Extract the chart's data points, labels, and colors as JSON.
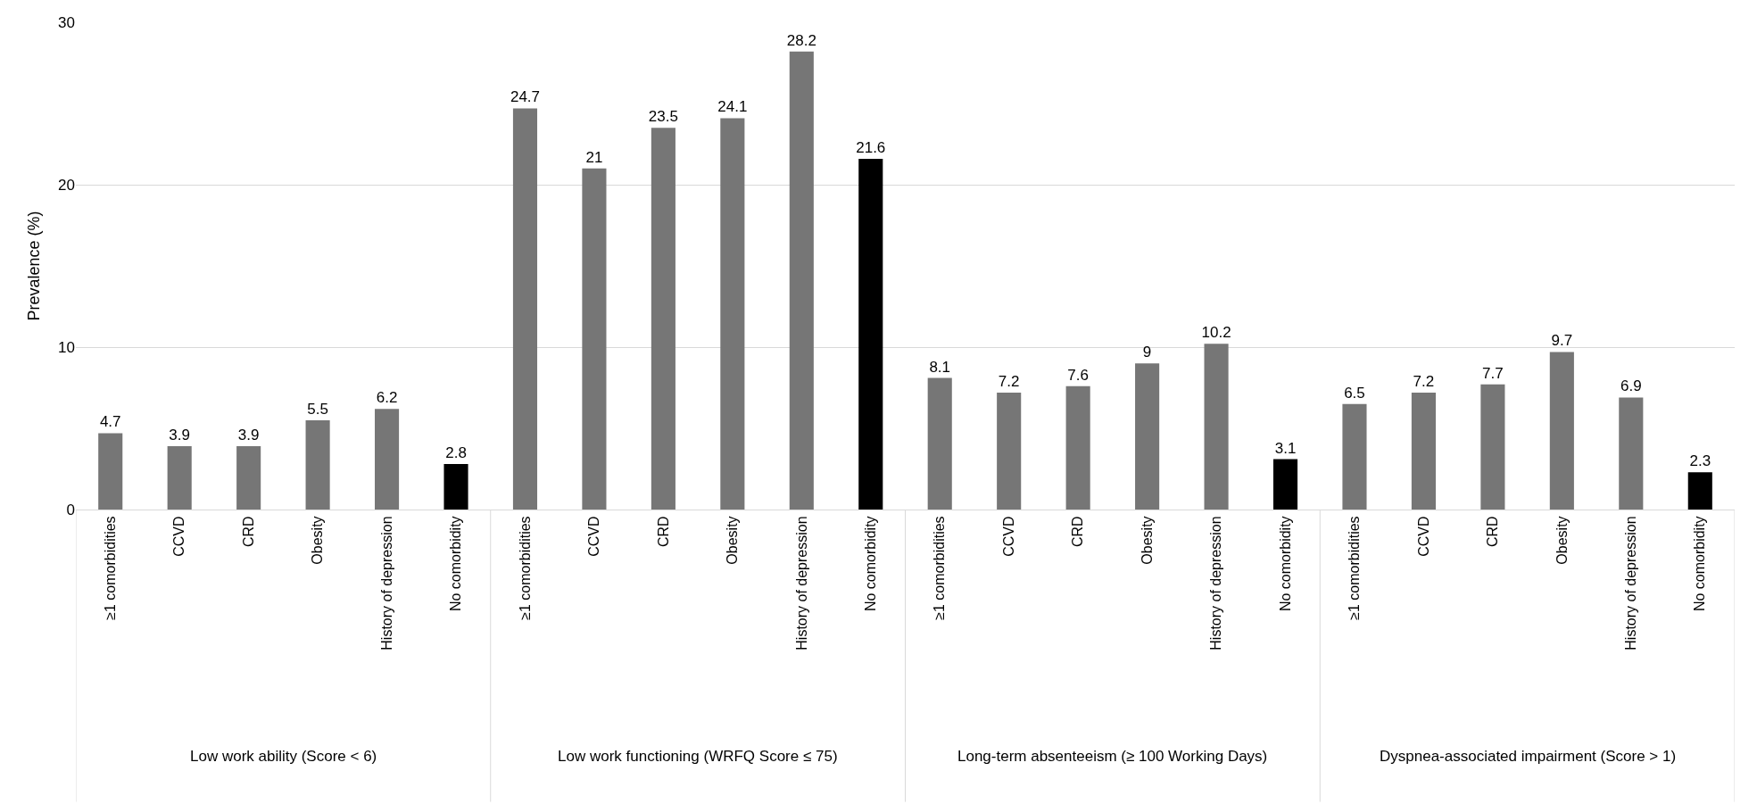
{
  "chart_data": {
    "type": "bar",
    "ylabel": "Prevalence (%)",
    "categories": [
      "≥1 comorbidities",
      "CCVD",
      "CRD",
      "Obesity",
      "History of depression",
      "No comorbidity",
      "≥1 comorbidities",
      "CCVD",
      "CRD",
      "Obesity",
      "History of depression",
      "No comorbidity",
      "≥1 comorbidities",
      "CCVD",
      "CRD",
      "Obesity",
      "History of depression",
      "No comorbidity",
      "≥1 comorbidities",
      "CCVD",
      "CRD",
      "Obesity",
      "History of depression",
      "No comorbidity"
    ],
    "values": [
      4.7,
      3.9,
      3.9,
      5.5,
      6.2,
      2.8,
      24.7,
      21,
      23.5,
      24.1,
      28.2,
      21.6,
      8.1,
      7.2,
      7.6,
      9,
      10.2,
      3.1,
      6.5,
      7.2,
      7.7,
      9.7,
      6.9,
      2.3
    ],
    "colors": [
      "#767676",
      "#767676",
      "#767676",
      "#767676",
      "#767676",
      "#000000",
      "#767676",
      "#767676",
      "#767676",
      "#767676",
      "#767676",
      "#000000",
      "#767676",
      "#767676",
      "#767676",
      "#767676",
      "#767676",
      "#000000",
      "#767676",
      "#767676",
      "#767676",
      "#767676",
      "#767676",
      "#000000"
    ],
    "annotations": [
      "Low work ability (Score < 6)",
      "Low work functioning (WRFQ Score ≤ 75)",
      "Long-term absenteeism (≥ 100 Working Days)",
      "Dyspnea-associated impairment (Score > 1)"
    ],
    "ylim": [
      0,
      30
    ],
    "yticks": [
      0,
      10,
      20,
      30
    ],
    "grid": "y",
    "data_labels": true
  }
}
